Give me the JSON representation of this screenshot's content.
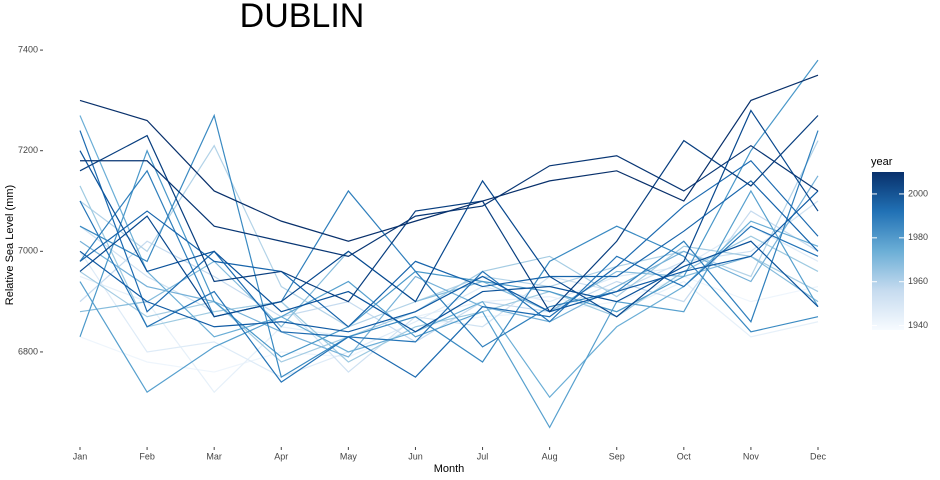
{
  "chart_data": {
    "type": "line",
    "title": "DUBLIN",
    "x_label": "Month",
    "y_label": "Relative Sea Level (mm)",
    "categories": [
      "Jan",
      "Feb",
      "Mar",
      "Apr",
      "May",
      "Jun",
      "Jul",
      "Aug",
      "Sep",
      "Oct",
      "Nov",
      "Dec"
    ],
    "ylim": [
      6615,
      7430
    ],
    "yticks": [
      6800,
      7000,
      7200,
      7400
    ],
    "grid": false,
    "legend": {
      "title": "year",
      "limits": [
        1938,
        2010
      ],
      "ticks": [
        1940,
        1960,
        1980,
        2000
      ],
      "colors": [
        "#f7fbff",
        "#c6dbef",
        "#6baed6",
        "#2171b5",
        "#08306b"
      ]
    },
    "series": [
      {
        "color": "#eef5fc",
        "values": [
          6830,
          6780,
          6760,
          6800,
          6790,
          6850,
          6870,
          6880,
          6900,
          6950,
          6900,
          6930
        ]
      },
      {
        "color": "#e6f0f9",
        "values": [
          6950,
          6900,
          6720,
          6850,
          6830,
          6870,
          6900,
          6910,
          6880,
          6940,
          6830,
          6860
        ]
      },
      {
        "color": "#deebf7",
        "values": [
          7000,
          6800,
          6820,
          6750,
          6800,
          6860,
          6930,
          6900,
          6950,
          6970,
          7050,
          6980
        ]
      },
      {
        "color": "#d0e2f2",
        "values": [
          7050,
          6950,
          6880,
          6900,
          6760,
          6870,
          6850,
          6950,
          6920,
          6980,
          7000,
          7100
        ]
      },
      {
        "color": "#c6dbef",
        "values": [
          6900,
          7020,
          6950,
          6870,
          6900,
          6820,
          6900,
          6880,
          6940,
          6900,
          7080,
          7000
        ]
      },
      {
        "color": "#b3d3e8",
        "values": [
          7100,
          7000,
          7210,
          6930,
          6850,
          6900,
          6950,
          6930,
          6970,
          7000,
          6950,
          7220
        ]
      },
      {
        "color": "#a5cce3",
        "values": [
          6960,
          6870,
          6900,
          6780,
          6830,
          6880,
          6960,
          6990,
          6910,
          7010,
          6990,
          6920
        ]
      },
      {
        "color": "#9ecae1",
        "values": [
          7130,
          6850,
          6880,
          6900,
          6780,
          6850,
          6880,
          6920,
          6870,
          6960,
          7030,
          6960
        ]
      },
      {
        "color": "#86bcdc",
        "values": [
          6880,
          6900,
          6980,
          6850,
          7000,
          6900,
          6940,
          6880,
          6960,
          6950,
          6990,
          6900
        ]
      },
      {
        "color": "#76b1d8",
        "values": [
          7020,
          6930,
          6900,
          6840,
          6790,
          6950,
          6890,
          6860,
          6930,
          7000,
          6940,
          7150
        ]
      },
      {
        "color": "#6baed6",
        "values": [
          7270,
          6960,
          6830,
          6870,
          6800,
          6840,
          6900,
          6710,
          6850,
          6930,
          7060,
          7010
        ]
      },
      {
        "color": "#57a0ce",
        "values": [
          6940,
          6720,
          6810,
          6870,
          6940,
          6830,
          6880,
          6650,
          6900,
          6880,
          7120,
          6890
        ]
      },
      {
        "color": "#4a98c9",
        "values": [
          6830,
          7200,
          6900,
          6790,
          6850,
          6960,
          6940,
          6920,
          6880,
          6950,
          7200,
          7380
        ]
      },
      {
        "color": "#3a8ac2",
        "values": [
          7050,
          6980,
          7270,
          6750,
          6830,
          6870,
          6780,
          6980,
          7050,
          6990,
          6840,
          6870
        ]
      },
      {
        "color": "#2f7fbc",
        "values": [
          6980,
          7160,
          6870,
          6900,
          7120,
          6960,
          6810,
          6890,
          6920,
          7020,
          6860,
          7240
        ]
      },
      {
        "color": "#2474b7",
        "values": [
          7100,
          6850,
          6920,
          6740,
          6830,
          6820,
          6960,
          6860,
          6990,
          6930,
          7050,
          6990
        ]
      },
      {
        "color": "#1c6ab0",
        "values": [
          7240,
          6880,
          7000,
          6840,
          6830,
          6750,
          6890,
          6870,
          6970,
          7090,
          7180,
          7030
        ]
      },
      {
        "color": "#1764ab",
        "values": [
          6980,
          7080,
          6980,
          6960,
          6850,
          6980,
          6930,
          6950,
          6950,
          7040,
          7140,
          7000
        ]
      },
      {
        "color": "#105ba4",
        "values": [
          7000,
          6900,
          6850,
          6860,
          6840,
          6880,
          6950,
          6880,
          6920,
          6960,
          6990,
          7120
        ]
      },
      {
        "color": "#0b529a",
        "values": [
          7200,
          6960,
          7000,
          6880,
          6920,
          6840,
          6920,
          6930,
          6900,
          6970,
          7020,
          6890
        ]
      },
      {
        "color": "#08488e",
        "values": [
          6960,
          7070,
          6870,
          6900,
          7000,
          6900,
          7140,
          6950,
          6870,
          6980,
          7280,
          7080
        ]
      },
      {
        "color": "#083e7f",
        "values": [
          7160,
          7230,
          6940,
          6960,
          6900,
          7080,
          7100,
          6880,
          7020,
          7220,
          7130,
          7270
        ]
      },
      {
        "color": "#083674",
        "values": [
          7180,
          7180,
          7050,
          7020,
          6990,
          7070,
          7090,
          7170,
          7190,
          7120,
          7210,
          7120
        ]
      },
      {
        "color": "#08306b",
        "values": [
          7300,
          7260,
          7120,
          7060,
          7020,
          7060,
          7100,
          7140,
          7160,
          7100,
          7300,
          7350
        ]
      }
    ]
  }
}
